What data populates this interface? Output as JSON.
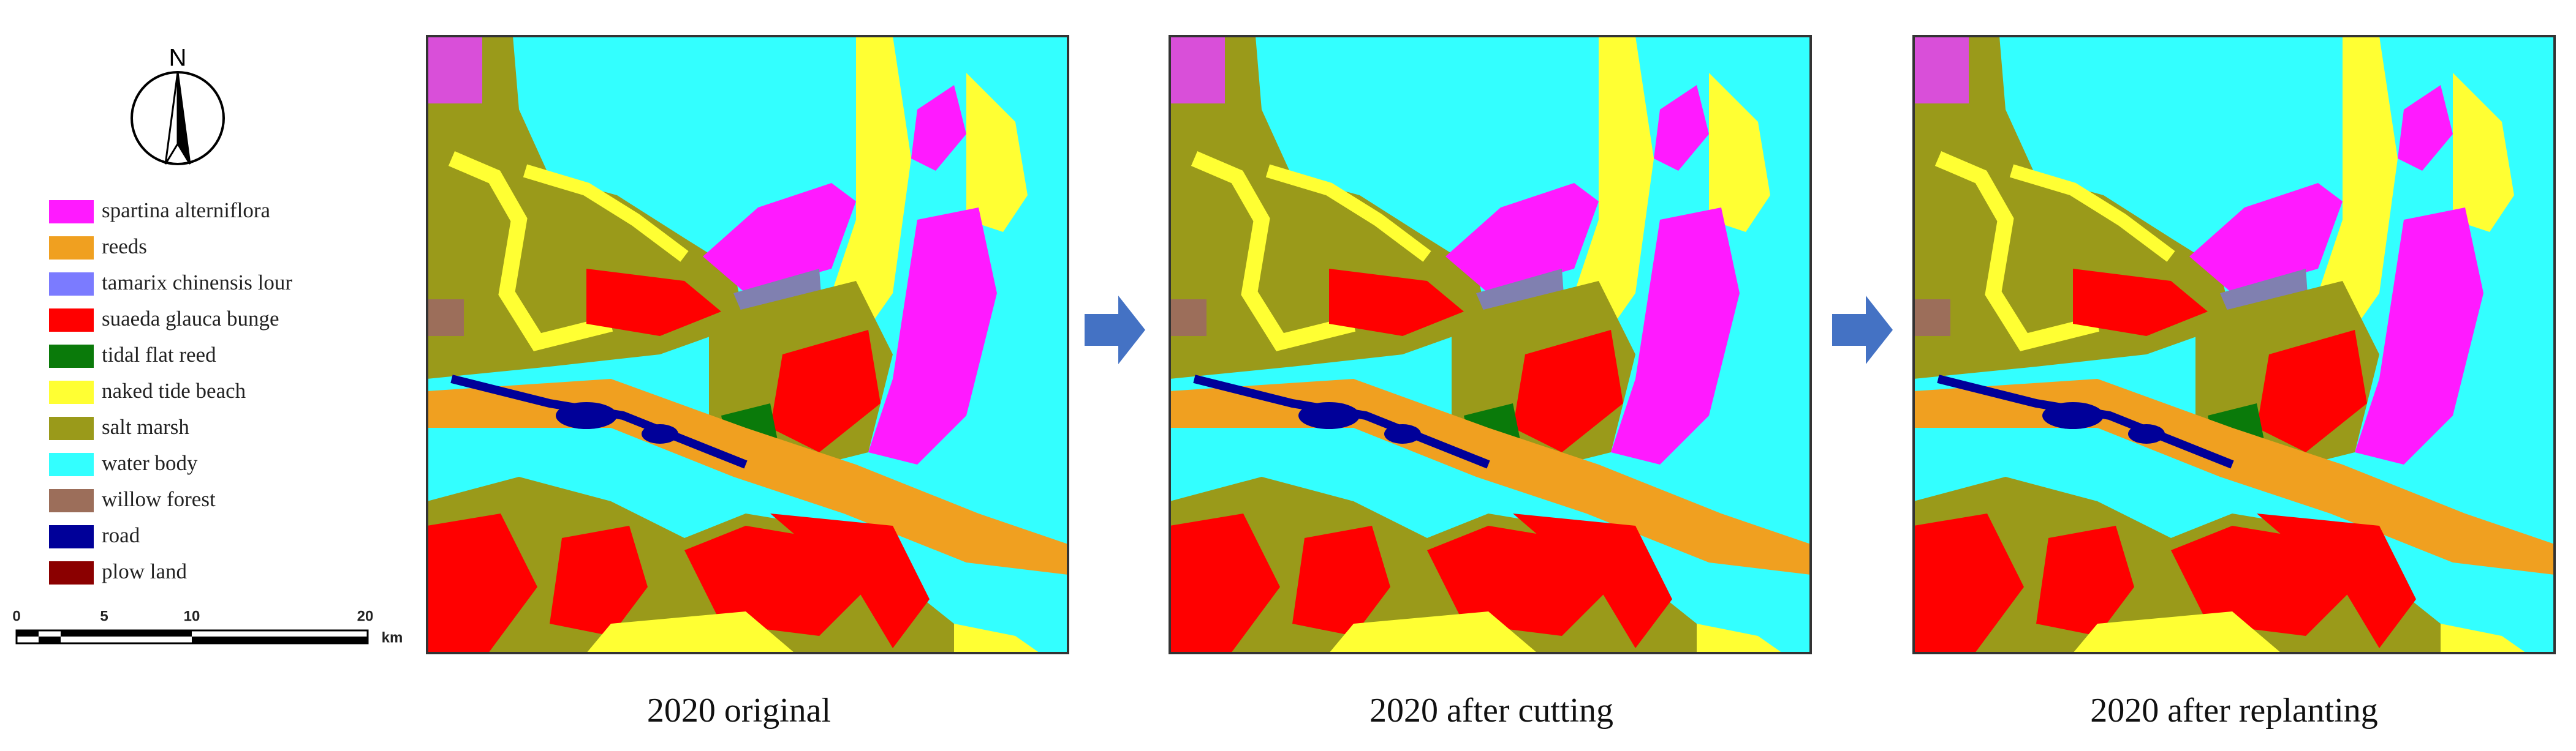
{
  "north_label": "N",
  "legend": [
    {
      "label": "spartina alterniflora",
      "color": "#ff1aff"
    },
    {
      "label": "reeds",
      "color": "#f0a020"
    },
    {
      "label": "tamarix chinensis lour",
      "color": "#7b7bff"
    },
    {
      "label": "suaeda glauca bunge",
      "color": "#ff0000"
    },
    {
      "label": "tidal flat reed",
      "color": "#0a7a0a"
    },
    {
      "label": "naked tide beach",
      "color": "#ffff33"
    },
    {
      "label": "salt marsh",
      "color": "#9a9a1a"
    },
    {
      "label": "water body",
      "color": "#33ffff"
    },
    {
      "label": "willow forest",
      "color": "#9c6e5a"
    },
    {
      "label": "road",
      "color": "#000099"
    },
    {
      "label": "plow land",
      "color": "#8b0000"
    }
  ],
  "scale_bar": {
    "labels": [
      "0",
      "5",
      "10",
      "20"
    ],
    "unit": "km"
  },
  "panels": [
    {
      "caption": "2020 original"
    },
    {
      "caption": "2020 after cutting"
    },
    {
      "caption": "2020 after replanting"
    }
  ]
}
